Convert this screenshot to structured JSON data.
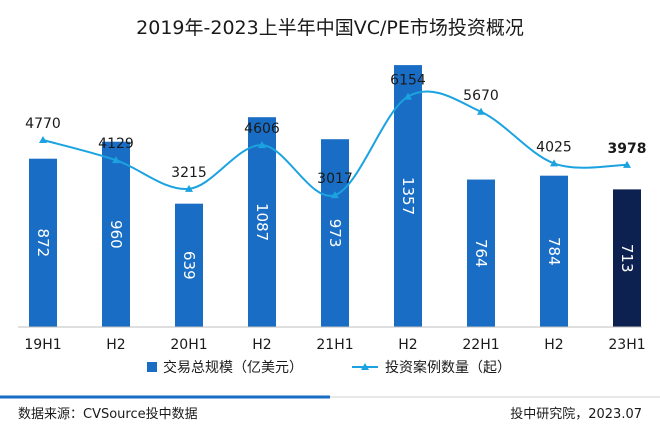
{
  "chart_data": {
    "type": "bar",
    "title": "2019年-2023上半年中国VC/PE市场投资概况",
    "categories": [
      "19H1",
      "H2",
      "20H1",
      "H2",
      "21H1",
      "H2",
      "22H1",
      "H2",
      "23H1"
    ],
    "series": [
      {
        "name": "交易总规模（亿美元）",
        "type": "bar",
        "values": [
          872,
          960,
          639,
          1087,
          973,
          1357,
          764,
          784,
          713
        ],
        "color": "#1a6dc4",
        "highlight_color": "#0d2150",
        "highlight_index": 8
      },
      {
        "name": "投资案例数量（起）",
        "type": "line",
        "values": [
          4770,
          4129,
          3215,
          4606,
          3017,
          6154,
          5670,
          4025,
          3978
        ],
        "color": "#1aa3e0",
        "smooth": true,
        "marker": "triangle"
      }
    ],
    "bar_value_labels": "inside-rotated",
    "line_value_labels": "above",
    "legend_placement": "bottom",
    "grid": false
  },
  "footer": {
    "source": "数据来源：CVSource投中数据",
    "credit": "投中研究院，2023.07"
  }
}
